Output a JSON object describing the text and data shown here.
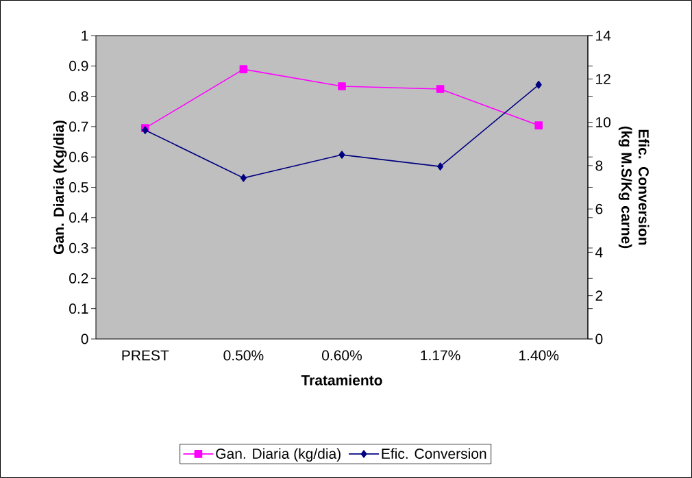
{
  "chart_data": {
    "type": "line",
    "xlabel": "Tratamiento",
    "ylabel": "Gan. Diaria (Kg/dia)",
    "y2label": "Efic. Conversion (kg M.S/Kg carne)",
    "categories": [
      "PREST",
      "0.50%",
      "0.60%",
      "1.17%",
      "1.40%"
    ],
    "series": [
      {
        "name": "Gan. Diaria  (kg/dia)",
        "color": "#ff00ff",
        "marker": "square",
        "values": [
          0.695,
          0.889,
          0.833,
          0.824,
          0.704
        ]
      },
      {
        "name": "Efic. Conversion",
        "color": "#000080",
        "marker": "diamond",
        "axis": "y2",
        "values": [
          9.64,
          7.43,
          8.5,
          7.96,
          11.73
        ]
      }
    ],
    "ylim": [
      0,
      1
    ],
    "yticks": [
      0,
      0.1,
      0.2,
      0.3,
      0.4,
      0.5,
      0.6,
      0.7,
      0.8,
      0.9,
      1
    ],
    "y2lim": [
      0,
      14
    ],
    "y2ticks": [
      0,
      2,
      4,
      6,
      8,
      10,
      12,
      14
    ],
    "legend": "bottom",
    "grid": false
  }
}
